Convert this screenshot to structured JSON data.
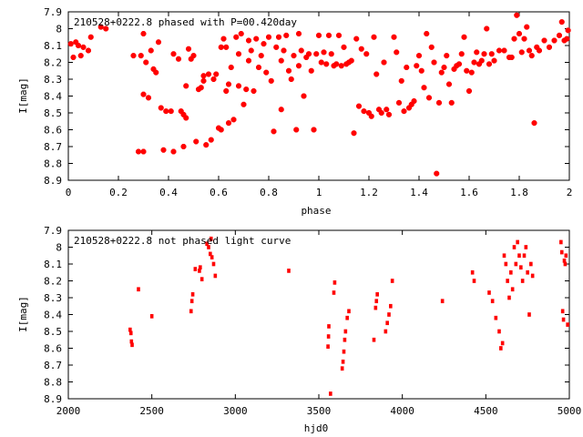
{
  "chart_data": [
    {
      "type": "scatter",
      "title": "210528+0222.8 phased with P=00.420day",
      "xlabel": "phase",
      "ylabel": "I[mag]",
      "xlim": [
        0,
        2
      ],
      "ylim": [
        8.9,
        7.9
      ],
      "y_inverted": true,
      "x_ticks": [
        "0",
        "0.2",
        "0.4",
        "0.6",
        "0.8",
        "1",
        "1.2",
        "1.4",
        "1.6",
        "1.8",
        "2"
      ],
      "y_ticks": [
        "7.9",
        "8",
        "8.1",
        "8.2",
        "8.3",
        "8.4",
        "8.5",
        "8.6",
        "8.7",
        "8.8",
        "8.9"
      ],
      "marker_color": "#ff0000",
      "grid": false,
      "points": [
        [
          0.01,
          8.09
        ],
        [
          0.02,
          8.17
        ],
        [
          0.03,
          8.08
        ],
        [
          0.04,
          8.1
        ],
        [
          0.05,
          8.16
        ],
        [
          0.06,
          8.11
        ],
        [
          0.08,
          8.13
        ],
        [
          0.09,
          8.05
        ],
        [
          0.13,
          7.99
        ],
        [
          0.15,
          8
        ],
        [
          0.26,
          8.16
        ],
        [
          0.28,
          8.73
        ],
        [
          0.29,
          8.16
        ],
        [
          0.3,
          8.73
        ],
        [
          0.3,
          8.03
        ],
        [
          0.3,
          8.39
        ],
        [
          0.32,
          8.41
        ],
        [
          0.31,
          8.2
        ],
        [
          0.33,
          8.13
        ],
        [
          0.34,
          8.24
        ],
        [
          0.35,
          8.26
        ],
        [
          0.36,
          8.08
        ],
        [
          0.37,
          8.47
        ],
        [
          0.38,
          8.72
        ],
        [
          0.39,
          8.49
        ],
        [
          0.41,
          8.49
        ],
        [
          0.42,
          8.73
        ],
        [
          0.42,
          8.15
        ],
        [
          0.44,
          8.18
        ],
        [
          0.45,
          8.49
        ],
        [
          0.46,
          8.51
        ],
        [
          0.46,
          8.7
        ],
        [
          0.47,
          8.53
        ],
        [
          0.47,
          8.34
        ],
        [
          0.48,
          8.12
        ],
        [
          0.49,
          8.18
        ],
        [
          0.5,
          8.16
        ],
        [
          0.51,
          8.67
        ],
        [
          0.52,
          8.36
        ],
        [
          0.53,
          8.35
        ],
        [
          0.54,
          8.31
        ],
        [
          0.54,
          8.28
        ],
        [
          0.55,
          8.69
        ],
        [
          0.56,
          8.27
        ],
        [
          0.57,
          8.66
        ],
        [
          0.58,
          8.3
        ],
        [
          0.59,
          8.27
        ],
        [
          0.6,
          8.59
        ],
        [
          0.61,
          8.11
        ],
        [
          0.61,
          8.6
        ],
        [
          0.62,
          8.06
        ],
        [
          0.63,
          8.11
        ],
        [
          0.63,
          8.37
        ],
        [
          0.64,
          8.56
        ],
        [
          0.64,
          8.33
        ],
        [
          0.65,
          8.23
        ],
        [
          0.66,
          8.54
        ],
        [
          0.67,
          8.05
        ],
        [
          0.68,
          8.15
        ],
        [
          0.68,
          8.34
        ],
        [
          0.69,
          8.03
        ],
        [
          0.7,
          8.45
        ],
        [
          0.71,
          8.36
        ],
        [
          0.72,
          8.07
        ],
        [
          0.72,
          8.19
        ],
        [
          0.73,
          8.13
        ],
        [
          0.74,
          8.37
        ],
        [
          0.75,
          8.06
        ],
        [
          0.76,
          8.23
        ],
        [
          0.77,
          8.16
        ],
        [
          0.78,
          8.09
        ],
        [
          0.79,
          8.26
        ],
        [
          0.8,
          8.05
        ],
        [
          0.81,
          8.31
        ],
        [
          0.82,
          8.61
        ],
        [
          0.83,
          8.11
        ],
        [
          0.84,
          8.05
        ],
        [
          0.85,
          8.48
        ],
        [
          0.85,
          8.19
        ],
        [
          0.86,
          8.13
        ],
        [
          0.87,
          8.04
        ],
        [
          0.88,
          8.25
        ],
        [
          0.89,
          8.3
        ],
        [
          0.9,
          8.16
        ],
        [
          0.91,
          8.6
        ],
        [
          0.92,
          8.03
        ],
        [
          0.92,
          8.22
        ],
        [
          0.93,
          8.13
        ],
        [
          0.94,
          8.4
        ],
        [
          0.95,
          8.17
        ],
        [
          0.96,
          8.15
        ],
        [
          0.97,
          8.25
        ],
        [
          0.98,
          8.6
        ],
        [
          0.99,
          8.15
        ],
        [
          1,
          8.04
        ],
        [
          1.01,
          8.2
        ],
        [
          1.02,
          8.14
        ],
        [
          1.03,
          8.21
        ],
        [
          1.04,
          8.04
        ],
        [
          1.05,
          8.15
        ],
        [
          1.06,
          8.22
        ],
        [
          1.07,
          8.21
        ],
        [
          1.08,
          8.04
        ],
        [
          1.09,
          8.22
        ],
        [
          1.1,
          8.11
        ],
        [
          1.11,
          8.21
        ],
        [
          1.12,
          8.2
        ],
        [
          1.13,
          8.19
        ],
        [
          1.14,
          8.62
        ],
        [
          1.15,
          8.06
        ],
        [
          1.16,
          8.46
        ],
        [
          1.17,
          8.12
        ],
        [
          1.18,
          8.49
        ],
        [
          1.19,
          8.15
        ],
        [
          1.2,
          8.5
        ],
        [
          1.21,
          8.52
        ],
        [
          1.22,
          8.05
        ],
        [
          1.23,
          8.27
        ],
        [
          1.24,
          8.48
        ],
        [
          1.25,
          8.5
        ],
        [
          1.26,
          8.2
        ],
        [
          1.27,
          8.48
        ],
        [
          1.28,
          8.51
        ],
        [
          1.3,
          8.05
        ],
        [
          1.31,
          8.14
        ],
        [
          1.32,
          8.44
        ],
        [
          1.33,
          8.31
        ],
        [
          1.34,
          8.49
        ],
        [
          1.35,
          8.23
        ],
        [
          1.36,
          8.47
        ],
        [
          1.37,
          8.45
        ],
        [
          1.38,
          8.43
        ],
        [
          1.39,
          8.22
        ],
        [
          1.4,
          8.16
        ],
        [
          1.41,
          8.25
        ],
        [
          1.42,
          8.35
        ],
        [
          1.43,
          8.03
        ],
        [
          1.44,
          8.41
        ],
        [
          1.45,
          8.11
        ],
        [
          1.46,
          8.2
        ],
        [
          1.47,
          8.86
        ],
        [
          1.48,
          8.44
        ],
        [
          1.49,
          8.26
        ],
        [
          1.5,
          8.23
        ],
        [
          1.51,
          8.16
        ],
        [
          1.52,
          8.33
        ],
        [
          1.53,
          8.44
        ],
        [
          1.54,
          8.24
        ],
        [
          1.55,
          8.22
        ],
        [
          1.56,
          8.21
        ],
        [
          1.57,
          8.15
        ],
        [
          1.58,
          8.05
        ],
        [
          1.59,
          8.25
        ],
        [
          1.6,
          8.37
        ],
        [
          1.61,
          8.26
        ],
        [
          1.62,
          8.2
        ],
        [
          1.63,
          8.14
        ],
        [
          1.64,
          8.21
        ],
        [
          1.65,
          8.19
        ],
        [
          1.66,
          8.15
        ],
        [
          1.67,
          8
        ],
        [
          1.68,
          8.21
        ],
        [
          1.69,
          8.15
        ],
        [
          1.7,
          8.19
        ],
        [
          1.72,
          8.13
        ],
        [
          1.74,
          8.13
        ],
        [
          1.76,
          8.17
        ],
        [
          1.77,
          8.17
        ],
        [
          1.78,
          8.06
        ],
        [
          1.79,
          7.92
        ],
        [
          1.8,
          8.03
        ],
        [
          1.81,
          8.14
        ],
        [
          1.82,
          8.06
        ],
        [
          1.83,
          7.99
        ],
        [
          1.84,
          8.13
        ],
        [
          1.85,
          8.16
        ],
        [
          1.86,
          8.56
        ],
        [
          1.87,
          8.11
        ],
        [
          1.88,
          8.13
        ],
        [
          1.9,
          8.07
        ],
        [
          1.92,
          8.11
        ],
        [
          1.94,
          8.07
        ],
        [
          1.96,
          8.04
        ],
        [
          1.97,
          7.96
        ],
        [
          1.98,
          8.07
        ],
        [
          1.99,
          8.06
        ],
        [
          1.995,
          8.01
        ]
      ]
    },
    {
      "type": "scatter",
      "title": "210528+0222.8 not phased light curve",
      "xlabel": "hjd0",
      "ylabel": "I[mag]",
      "xlim": [
        2000,
        5000
      ],
      "ylim": [
        8.9,
        7.9
      ],
      "y_inverted": true,
      "x_ticks": [
        "2000",
        "2500",
        "3000",
        "3500",
        "4000",
        "4500",
        "5000"
      ],
      "y_ticks": [
        "7.9",
        "8",
        "8.1",
        "8.2",
        "8.3",
        "8.4",
        "8.5",
        "8.6",
        "8.7",
        "8.8",
        "8.9"
      ],
      "marker_color": "#ff0000",
      "grid": false,
      "points": [
        [
          2370,
          8.49
        ],
        [
          2375,
          8.51
        ],
        [
          2378,
          8.56
        ],
        [
          2382,
          8.58
        ],
        [
          2420,
          8.25
        ],
        [
          2500,
          8.41
        ],
        [
          2735,
          8.38
        ],
        [
          2740,
          8.32
        ],
        [
          2745,
          8.28
        ],
        [
          2760,
          8.13
        ],
        [
          2785,
          8.14
        ],
        [
          2790,
          8.12
        ],
        [
          2800,
          8.19
        ],
        [
          2830,
          7.98
        ],
        [
          2840,
          8.0
        ],
        [
          2850,
          8.04
        ],
        [
          2855,
          7.95
        ],
        [
          2860,
          8.06
        ],
        [
          2870,
          8.1
        ],
        [
          2880,
          8.17
        ],
        [
          3320,
          8.14
        ],
        [
          3555,
          8.59
        ],
        [
          3558,
          8.53
        ],
        [
          3560,
          8.47
        ],
        [
          3570,
          8.87
        ],
        [
          3590,
          8.27
        ],
        [
          3595,
          8.21
        ],
        [
          3640,
          8.72
        ],
        [
          3645,
          8.68
        ],
        [
          3650,
          8.62
        ],
        [
          3655,
          8.55
        ],
        [
          3660,
          8.5
        ],
        [
          3670,
          8.42
        ],
        [
          3680,
          8.38
        ],
        [
          3830,
          8.55
        ],
        [
          3840,
          8.36
        ],
        [
          3845,
          8.32
        ],
        [
          3850,
          8.28
        ],
        [
          3900,
          8.5
        ],
        [
          3910,
          8.45
        ],
        [
          3920,
          8.4
        ],
        [
          3930,
          8.35
        ],
        [
          3940,
          8.2
        ],
        [
          4240,
          8.32
        ],
        [
          4420,
          8.15
        ],
        [
          4430,
          8.2
        ],
        [
          4520,
          8.27
        ],
        [
          4540,
          8.32
        ],
        [
          4560,
          8.42
        ],
        [
          4580,
          8.5
        ],
        [
          4590,
          8.6
        ],
        [
          4600,
          8.57
        ],
        [
          4610,
          8.05
        ],
        [
          4620,
          8.1
        ],
        [
          4630,
          8.2
        ],
        [
          4640,
          8.3
        ],
        [
          4650,
          8.15
        ],
        [
          4660,
          8.25
        ],
        [
          4670,
          8.0
        ],
        [
          4680,
          8.1
        ],
        [
          4690,
          7.97
        ],
        [
          4700,
          8.05
        ],
        [
          4710,
          8.12
        ],
        [
          4720,
          8.2
        ],
        [
          4730,
          8.05
        ],
        [
          4740,
          8.0
        ],
        [
          4750,
          8.15
        ],
        [
          4760,
          8.4
        ],
        [
          4770,
          8.1
        ],
        [
          4780,
          8.17
        ],
        [
          4950,
          7.97
        ],
        [
          4955,
          8.03
        ],
        [
          4960,
          8.38
        ],
        [
          4965,
          8.43
        ],
        [
          4970,
          8.08
        ],
        [
          4975,
          8.1
        ],
        [
          4980,
          8.05
        ],
        [
          4990,
          8.46
        ]
      ]
    }
  ]
}
